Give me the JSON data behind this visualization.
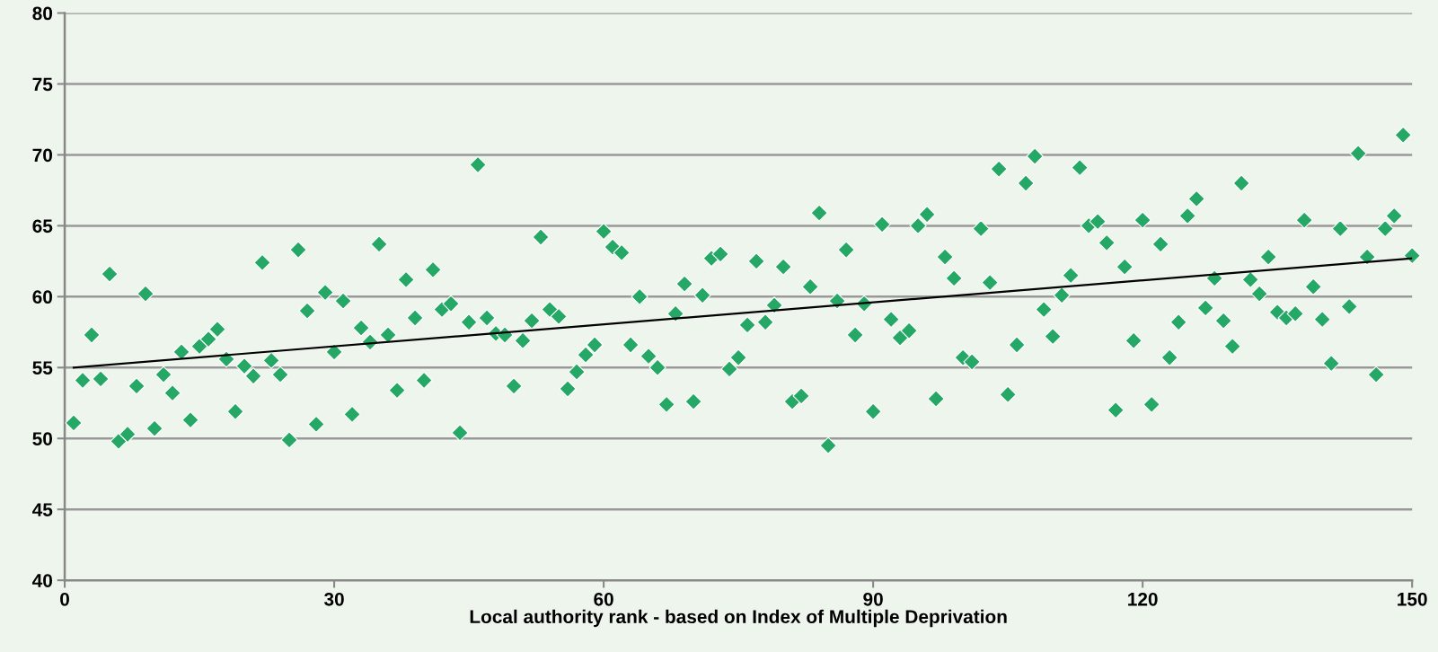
{
  "chart_data": {
    "type": "scatter",
    "xlabel": "Local authority rank - based on Index of Multiple Deprivation",
    "xlim": [
      0,
      150
    ],
    "xticks": [
      0,
      30,
      60,
      90,
      120,
      150
    ],
    "ylim": [
      40,
      80
    ],
    "yticks": [
      40,
      45,
      50,
      55,
      60,
      65,
      70,
      75,
      80
    ],
    "grid": "y",
    "series": [
      {
        "color": "#25a865",
        "marker": "diamond",
        "x": [
          1,
          2,
          3,
          4,
          5,
          6,
          7,
          8,
          9,
          10,
          11,
          12,
          13,
          14,
          15,
          16,
          17,
          18,
          19,
          20,
          21,
          22,
          23,
          24,
          25,
          26,
          27,
          28,
          29,
          30,
          31,
          32,
          33,
          34,
          35,
          36,
          37,
          38,
          39,
          40,
          41,
          42,
          43,
          44,
          45,
          46,
          47,
          48,
          49,
          50,
          51,
          52,
          53,
          54,
          55,
          56,
          57,
          58,
          59,
          60,
          61,
          62,
          63,
          64,
          65,
          66,
          67,
          68,
          69,
          70,
          71,
          72,
          73,
          74,
          75,
          76,
          77,
          78,
          79,
          80,
          81,
          82,
          83,
          84,
          85,
          86,
          87,
          88,
          89,
          90,
          91,
          92,
          93,
          94,
          95,
          96,
          97,
          98,
          99,
          100,
          101,
          102,
          103,
          104,
          105,
          106,
          107,
          108,
          109,
          110,
          111,
          112,
          113,
          114,
          115,
          116,
          117,
          118,
          119,
          120,
          121,
          122,
          123,
          124,
          125,
          126,
          127,
          128,
          129,
          130,
          131,
          132,
          133,
          134,
          135,
          136,
          137,
          138,
          139,
          140,
          141,
          142,
          143,
          144,
          145,
          146,
          147,
          148,
          149,
          150
        ],
        "values": [
          51.1,
          54.1,
          57.3,
          54.2,
          61.6,
          49.8,
          50.3,
          53.7,
          60.2,
          50.7,
          54.5,
          53.2,
          56.1,
          51.3,
          56.5,
          57.0,
          57.7,
          55.6,
          51.9,
          55.1,
          54.4,
          62.4,
          55.5,
          54.5,
          49.9,
          63.3,
          59.0,
          51.0,
          60.3,
          56.1,
          59.7,
          51.7,
          57.8,
          56.8,
          63.7,
          57.3,
          53.4,
          61.2,
          58.5,
          54.1,
          61.9,
          59.1,
          59.5,
          50.4,
          58.2,
          69.3,
          58.5,
          57.4,
          57.3,
          53.7,
          56.9,
          58.3,
          64.2,
          59.1,
          58.6,
          53.5,
          54.7,
          55.9,
          56.6,
          64.6,
          63.5,
          63.1,
          56.6,
          60.0,
          55.8,
          55.0,
          52.4,
          58.8,
          60.9,
          52.6,
          60.1,
          62.7,
          63.0,
          54.9,
          55.7,
          58.0,
          62.5,
          58.2,
          59.4,
          62.1,
          52.6,
          53.0,
          60.7,
          65.9,
          49.5,
          59.7,
          63.3,
          57.3,
          59.5,
          51.9,
          65.1,
          58.4,
          57.1,
          57.6,
          65.0,
          65.8,
          52.8,
          62.8,
          61.3,
          55.7,
          55.4,
          64.8,
          61.0,
          69.0,
          53.1,
          56.6,
          68.0,
          69.9,
          59.1,
          57.2,
          60.1,
          61.5,
          69.1,
          65.0,
          65.3,
          63.8,
          52.0,
          62.1,
          56.9,
          65.4,
          52.4,
          63.7,
          55.7,
          58.2,
          65.7,
          66.9,
          59.2,
          61.3,
          58.3,
          56.5,
          68.0,
          61.2,
          60.2,
          62.8,
          58.9,
          58.5,
          58.8,
          65.4,
          60.7,
          58.4,
          55.3,
          64.8,
          59.3,
          70.1,
          62.8,
          54.5,
          64.8,
          65.7,
          71.4,
          62.9
        ]
      },
      {
        "type": "line",
        "color": "#000000",
        "x": [
          1,
          150
        ],
        "values": [
          55.0,
          62.7
        ]
      }
    ]
  }
}
